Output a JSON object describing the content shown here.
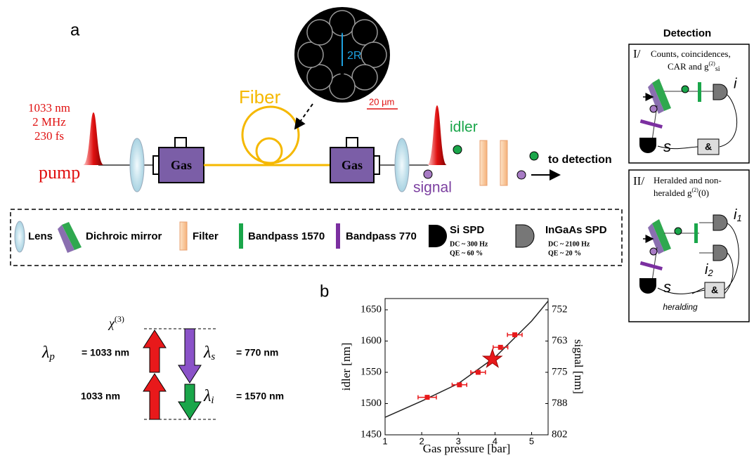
{
  "panel_labels": [
    "a",
    "b"
  ],
  "pump": {
    "params": [
      "1033 nm",
      "2 MHz",
      "230 fs"
    ],
    "label": "pump"
  },
  "fiber": {
    "label": "Fiber",
    "core": "2R",
    "scale": "20 µm"
  },
  "gas": [
    "Gas",
    "Gas"
  ],
  "outputs": {
    "idler": "idler",
    "signal": "signal",
    "to_detection": "to detection"
  },
  "legend": [
    {
      "label": "Lens"
    },
    {
      "label": "Dichroic mirror"
    },
    {
      "label": "Filter"
    },
    {
      "label": "Bandpass 1570"
    },
    {
      "label": "Bandpass 770"
    },
    {
      "label": "Si SPD",
      "details": [
        "DC ~ 300 Hz",
        "QE ~ 60 %"
      ]
    },
    {
      "label": "InGaAs SPD",
      "details": [
        "DC ~ 2100 Hz",
        "QE ~ 20 %"
      ]
    }
  ],
  "detection": {
    "title": "Detection",
    "setups": [
      {
        "numeral": "I/",
        "desc": [
          "Counts, coincidences,",
          "CAR and g",
          "(2)",
          "si"
        ],
        "labels": [
          "i",
          "s",
          "&"
        ]
      },
      {
        "numeral": "II/",
        "desc": [
          "Heralded and non-",
          "heralded g",
          "(2)",
          "(0)"
        ],
        "labels": [
          "i",
          "1",
          "i",
          "2",
          "s",
          "&",
          "heralding"
        ]
      }
    ]
  },
  "levels": {
    "chi": [
      "χ",
      "(3)"
    ],
    "pump": [
      "λ",
      "p",
      "= 1033 nm"
    ],
    "pump2": "1033 nm",
    "signal": [
      "λ",
      "s",
      "= 770 nm"
    ],
    "idler": [
      "λ",
      "i",
      "= 1570 nm"
    ]
  },
  "chart_data": {
    "type": "scatter",
    "xlabel": "Gas pressure [bar]",
    "ylabel": "idler [nm]",
    "y2label": "signal [nm]",
    "xlim": [
      1,
      5.45
    ],
    "xticks": [
      1,
      2,
      3,
      4,
      5
    ],
    "ylim": [
      1450,
      1668
    ],
    "yticks": [
      1450,
      1500,
      1550,
      1600,
      1650
    ],
    "y2ticks": [
      802,
      788,
      775,
      763,
      752
    ],
    "series": [
      {
        "color": "#e8191b",
        "x": [
          2.15,
          3.03,
          3.54,
          4.15,
          4.54
        ],
        "values": [
          1510,
          1530,
          1550,
          1590,
          1610
        ],
        "xerr": [
          0.25,
          0.2,
          0.2,
          0.2,
          0.2
        ]
      }
    ],
    "highlight": {
      "x": 3.93,
      "y": 1571,
      "color": "#e8191b"
    },
    "fit": {
      "color": "#222222",
      "x": [
        1,
        2,
        3,
        4,
        5,
        5.45
      ],
      "values": [
        1478,
        1504,
        1532,
        1574,
        1632,
        1664
      ]
    }
  }
}
